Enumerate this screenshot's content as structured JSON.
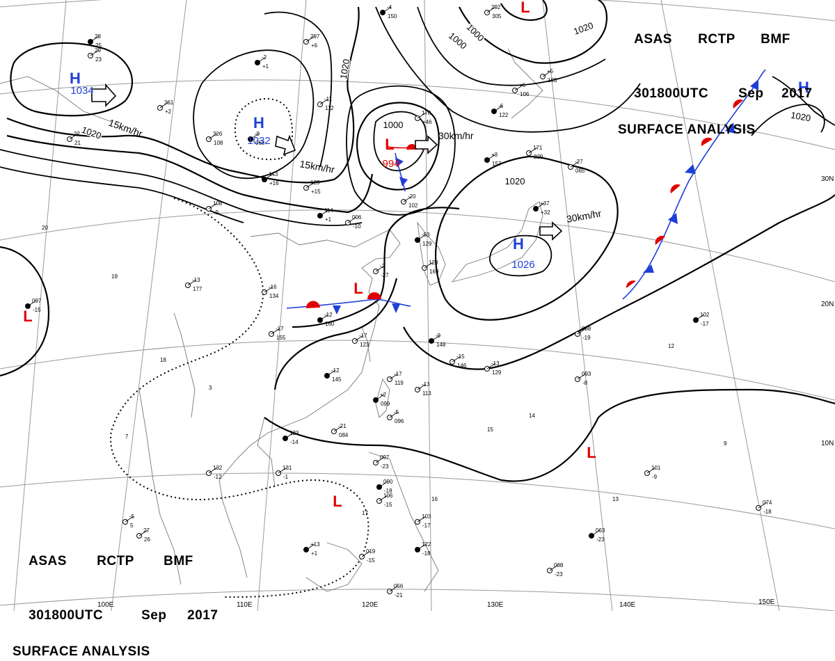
{
  "header_top": {
    "agency_code": "ASAS",
    "station": "RCTP",
    "product": "BMF",
    "time": "301800UTC",
    "month": "Sep",
    "year": "2017",
    "title": "SURFACE ANALYSIS"
  },
  "header_bottom": {
    "agency_code": "ASAS",
    "station": "RCTP",
    "product": "BMF",
    "time": "301800UTC",
    "month": "Sep",
    "year": "2017",
    "title": "SURFACE ANALYSIS"
  },
  "latitude_labels": [
    "30N",
    "20N",
    "10N"
  ],
  "longitude_labels": [
    "100E",
    "110E",
    "120E",
    "130E",
    "140E",
    "150E"
  ],
  "isobar_labels": [
    "1000",
    "1000",
    "1020",
    "1020",
    "1020",
    "1020",
    "1020",
    "1000"
  ],
  "pressure_systems": [
    {
      "type": "H",
      "value": "1034",
      "color": "#1f3fd6"
    },
    {
      "type": "H",
      "value": "1032",
      "color": "#1f3fd6"
    },
    {
      "type": "L",
      "value": "994",
      "color": "#e00000"
    },
    {
      "type": "H",
      "value": "1026",
      "color": "#1f3fd6"
    },
    {
      "type": "H",
      "value": "",
      "color": "#1f3fd6"
    },
    {
      "type": "L",
      "value": "",
      "color": "#e00000"
    },
    {
      "type": "L",
      "value": "",
      "color": "#e00000"
    },
    {
      "type": "L",
      "value": "",
      "color": "#e00000"
    },
    {
      "type": "L",
      "value": "",
      "color": "#e00000"
    },
    {
      "type": "L",
      "value": "",
      "color": "#e00000"
    }
  ],
  "motion_labels": [
    "15km/hr",
    "15km/hr",
    "30km/hr",
    "30km/hr"
  ],
  "station_plots": [
    "-4",
    "150",
    "292",
    "305",
    "297",
    "+6",
    "-2",
    "+1",
    "361",
    "+2",
    "326",
    "108",
    "-9",
    "068",
    "-11",
    "112",
    "170",
    "+46",
    "143",
    "+16",
    "123",
    "+15",
    "108",
    "-9",
    "114",
    "+1",
    "006",
    "-10",
    "-20",
    "102",
    "-53",
    "129",
    "-2",
    "-27",
    "128",
    "169",
    "+3",
    "157",
    "171",
    "229",
    "-27",
    "065",
    "+37",
    "+32",
    "+6",
    "106",
    "+5",
    "103",
    "-6",
    "122",
    "-16",
    "134",
    "-13",
    "177",
    "-12",
    "160",
    "-17",
    "155",
    "-17",
    "123",
    "-9",
    "148",
    "-15",
    "146",
    "-13",
    "129",
    "-12",
    "145",
    "-17",
    "119",
    "-13",
    "113",
    "+2",
    "099",
    "-5",
    "096",
    "-21",
    "084",
    "123",
    "-14",
    "132",
    "-12",
    "131",
    "-1",
    "097",
    "-15",
    "093",
    "-8",
    "088",
    "-19",
    "102",
    "-17",
    "101",
    "-9",
    "074",
    "-18",
    "063",
    "-23",
    "088",
    "-23",
    "097",
    "-23",
    "090",
    "-18",
    "106",
    "-15",
    "103",
    "-17",
    "122",
    "-18",
    "019",
    "-15",
    "056",
    "-21",
    "+13",
    "+1",
    "-5",
    "5",
    "27",
    "26",
    "28",
    "25",
    "29",
    "23",
    "22",
    "21",
    "20",
    "19",
    "18",
    "17",
    "16",
    "15",
    "14",
    "13",
    "12",
    "9",
    "7",
    "3"
  ],
  "colors": {
    "high": "#1f3fd6",
    "low": "#e00000",
    "warm_front": "#e00000",
    "cold_front": "#1f3fd6",
    "line": "#000000",
    "coast": "#777777",
    "grid": "#9a9a9a"
  }
}
